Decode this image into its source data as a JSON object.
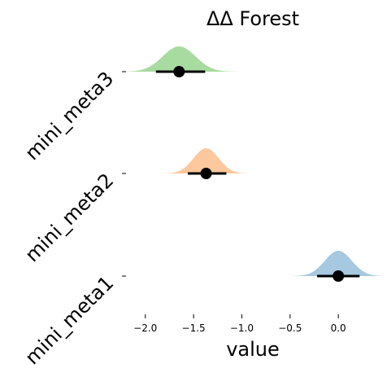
{
  "chart_data": {
    "type": "forest",
    "title": "ΔΔ Forest",
    "xlabel": "value",
    "ylabel": "",
    "xlim": [
      -2.2,
      0.42
    ],
    "xticks": [
      -2.0,
      -1.5,
      -1.0,
      -0.5,
      0.0
    ],
    "xtick_labels": [
      "−2.0",
      "−1.5",
      "−1.0",
      "−0.5",
      "0.0"
    ],
    "grid": false,
    "categories": [
      "mini_meta3",
      "mini_meta2",
      "mini_meta1"
    ],
    "series": [
      {
        "label": "mini_meta3",
        "estimate": -1.65,
        "ci": [
          -1.89,
          -1.38
        ],
        "dist_sd": 0.17,
        "color": "#a8dba0"
      },
      {
        "label": "mini_meta2",
        "estimate": -1.37,
        "ci": [
          -1.56,
          -1.16
        ],
        "dist_sd": 0.13,
        "color": "#fdc89e"
      },
      {
        "label": "mini_meta1",
        "estimate": 0.0,
        "ci": [
          -0.22,
          0.22
        ],
        "dist_sd": 0.14,
        "color": "#a6c8e0"
      }
    ]
  }
}
